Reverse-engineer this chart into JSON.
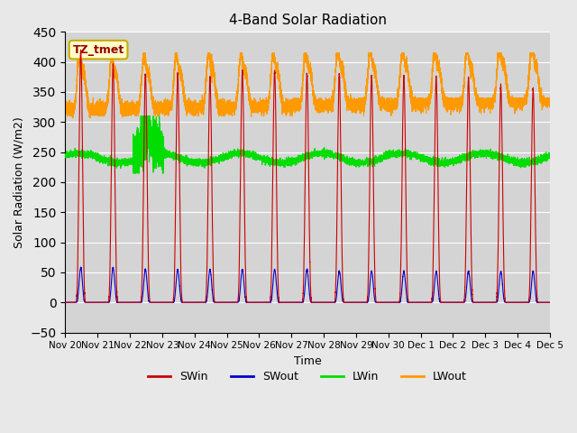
{
  "title": "4-Band Solar Radiation",
  "xlabel": "Time",
  "ylabel": "Solar Radiation (W/m2)",
  "ylim": [
    -50,
    450
  ],
  "fig_bg_color": "#e8e8e8",
  "plot_bg_color": "#d4d4d4",
  "grid_color": "#ffffff",
  "colors": {
    "SWin": "#cc0000",
    "SWout": "#0000cc",
    "LWin": "#00dd00",
    "LWout": "#ff9900"
  },
  "annotation_label": "TZ_tmet",
  "annotation_fg": "#990000",
  "annotation_bg": "#ffffcc",
  "annotation_border": "#ccaa00",
  "x_tick_labels": [
    "Nov 20",
    "Nov 21",
    "Nov 22",
    "Nov 23",
    "Nov 24",
    "Nov 25",
    "Nov 26",
    "Nov 27",
    "Nov 28",
    "Nov 29",
    "Nov 30",
    "Dec 1",
    "Dec 2",
    "Dec 3",
    "Dec 4",
    "Dec 5"
  ],
  "num_days": 15,
  "ppd": 480,
  "legend_entries": [
    "SWin",
    "SWout",
    "LWin",
    "LWout"
  ]
}
